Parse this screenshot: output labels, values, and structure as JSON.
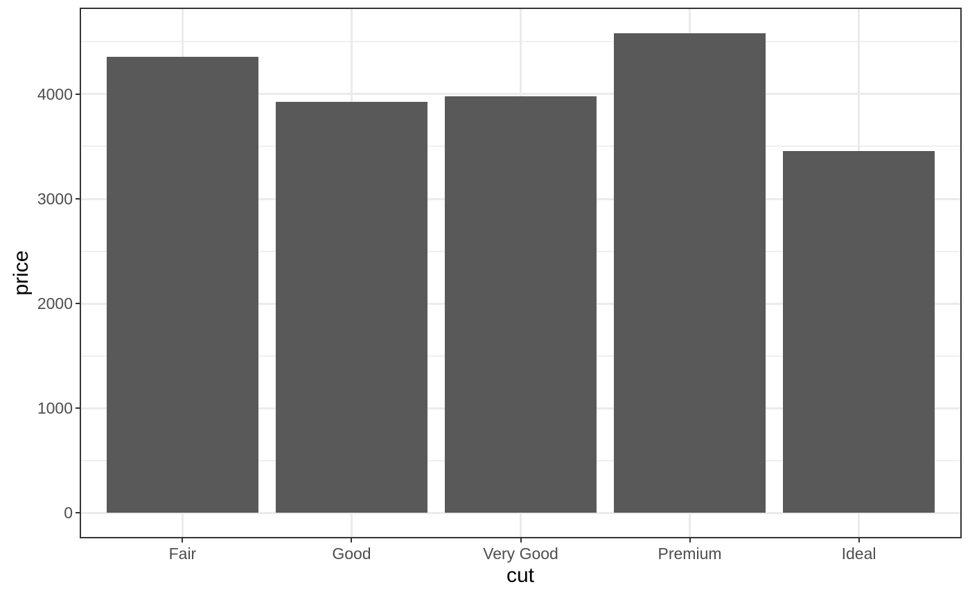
{
  "chart_data": {
    "type": "bar",
    "title": "",
    "xlabel": "cut",
    "ylabel": "price",
    "categories": [
      "Fair",
      "Good",
      "Very Good",
      "Premium",
      "Ideal"
    ],
    "values": [
      4358.76,
      3928.86,
      3981.76,
      4584.26,
      3457.54
    ],
    "y_ticks": [
      0,
      1000,
      2000,
      3000,
      4000
    ],
    "y_minor_ticks": [
      500,
      1500,
      2500,
      3500,
      4500
    ],
    "axis_range": [
      -229.2,
      4813.5
    ],
    "ylim": [
      0,
      4584.26
    ],
    "grid": "major-and-minor",
    "legend": "none",
    "bar_width_fraction": 0.9,
    "colors": {
      "bar_fill": "#595959",
      "grid_major": "#EBEBEB",
      "grid_minor": "#EFEFEF",
      "panel_border": "#333333",
      "tick_mark": "#333333",
      "tick_label": "#4D4D4D",
      "axis_title": "#000000",
      "background": "#FFFFFF"
    }
  }
}
